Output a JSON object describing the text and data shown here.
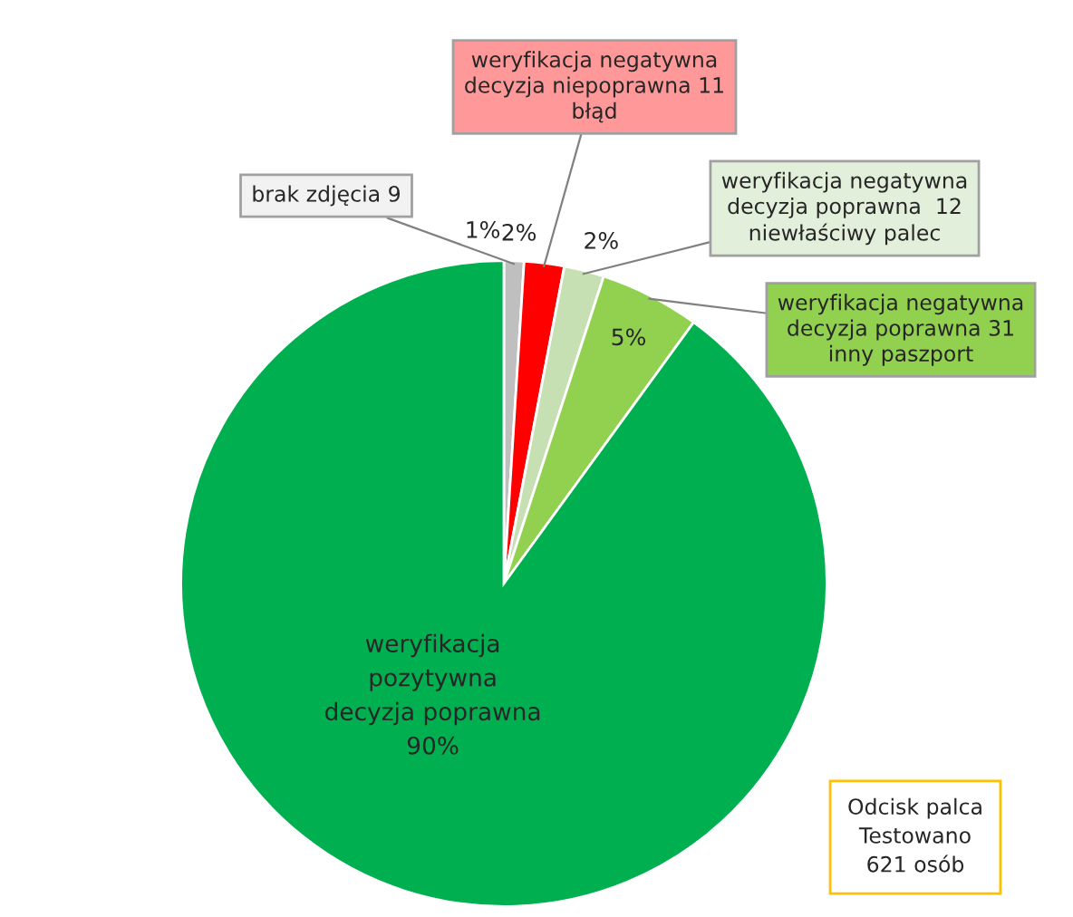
{
  "chart_data": {
    "type": "pie",
    "categories": [
      "brak zdjęcia 9",
      "weryfikacja negatywna\ndecyzja niepoprawna 11\nbłąd",
      "weryfikacja negatywna\ndecyzja poprawna  12\nniewłaściwy palec",
      "weryfikacja negatywna\ndecyzja poprawna 31\ninny paszport",
      "weryfikacja\npozytywna\ndecyzja poprawna"
    ],
    "values": [
      1,
      2,
      2,
      5,
      90
    ],
    "value_labels": [
      "1%",
      "2%",
      "2%",
      "5%",
      "90%"
    ],
    "colors": [
      "#bfbfbf",
      "#ff0000",
      "#c6e0b4",
      "#92d050",
      "#00b050"
    ],
    "annotations": [
      "Odcisk palca\nTestowano\n621 osób"
    ],
    "legend": false
  }
}
